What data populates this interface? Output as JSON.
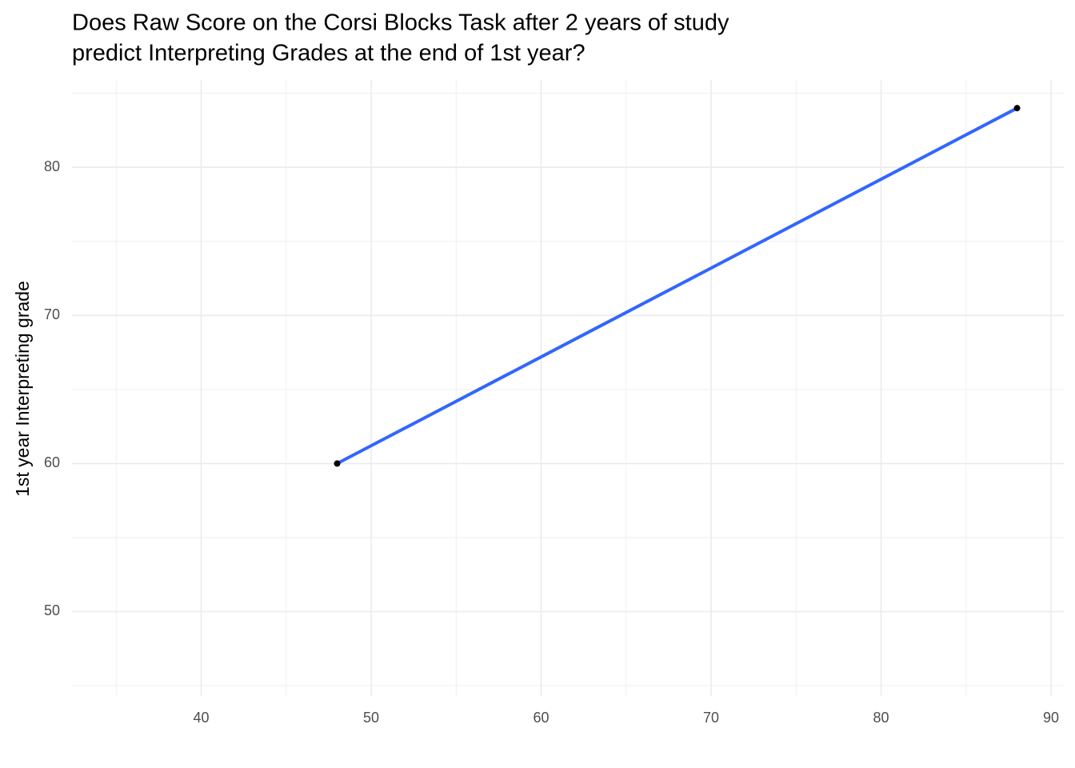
{
  "chart_data": {
    "type": "scatter",
    "title": [
      "Does Raw Score on the Corsi Blocks Task after 2 years of study",
      "predict Interpreting Grades at the end of 1st year?"
    ],
    "y_label": "1st year Interpreting grade",
    "x": [
      48,
      88
    ],
    "values": [
      60,
      84
    ],
    "color": "#000000",
    "fit_line": {
      "x": [
        48,
        88
      ],
      "values": [
        60,
        84
      ],
      "color": "#3366FF"
    },
    "xlim": [
      32.4,
      90.75
    ],
    "xticks": [
      40,
      50,
      60,
      70,
      80,
      90
    ],
    "xminor": [
      35,
      45,
      55,
      65,
      75,
      85
    ],
    "ylim": [
      44.3,
      85.9
    ],
    "yticks": [
      50,
      60,
      70,
      80
    ],
    "yminor": [
      45,
      55,
      65,
      75,
      85
    ],
    "grid": true
  }
}
